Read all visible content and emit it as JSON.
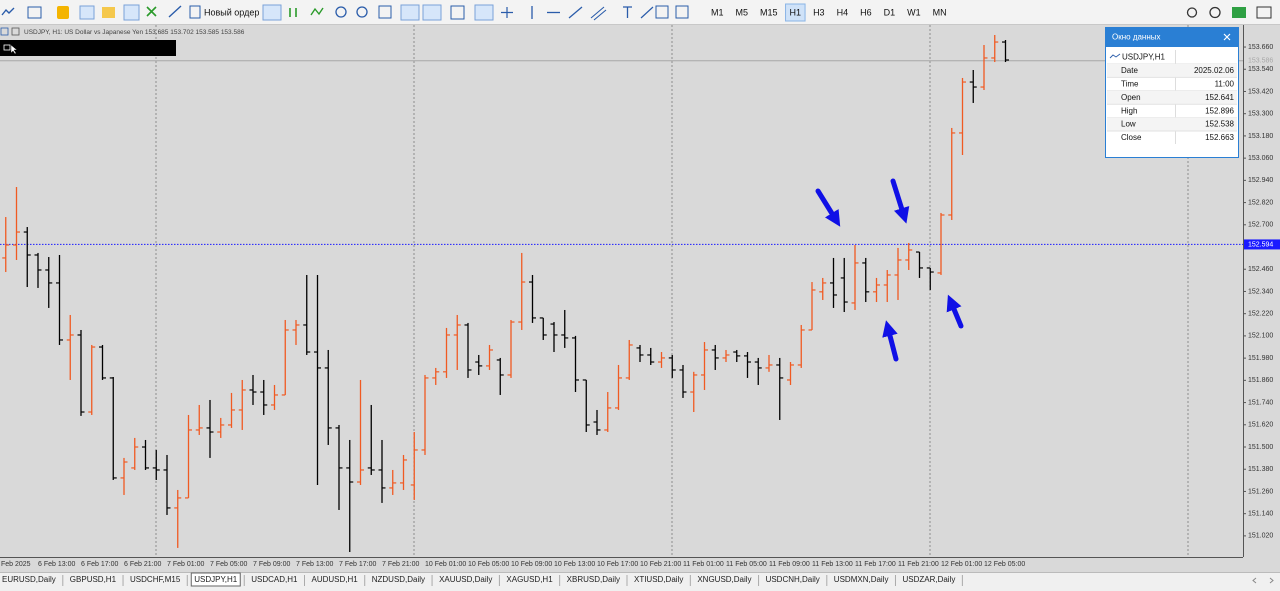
{
  "toolbar": {
    "new_order": "Новый ордер",
    "timeframes": [
      "M1",
      "M5",
      "M15",
      "H1",
      "H3",
      "H4",
      "H6",
      "D1",
      "W1",
      "MN"
    ],
    "active_timeframe": 3
  },
  "tabs": {
    "items": [
      "EURUSD,Daily",
      "GBPUSD,H1",
      "USDCHF,M15",
      "USDJPY,H1",
      "USDCAD,H1",
      "AUDUSD,H1",
      "NZDUSD,Daily",
      "XAUUSD,Daily",
      "XAGUSD,H1",
      "XBRUSD,Daily",
      "XTIUSD,Daily",
      "XNGUSD,Daily",
      "USDCNH,Daily",
      "USDMXN,Daily",
      "USDZAR,Daily"
    ],
    "active": 3
  },
  "data_window": {
    "title": "Окно данных",
    "symbol": "USDJPY,H1",
    "rows": [
      [
        "Date",
        "2025.02.06"
      ],
      [
        "Time",
        "11:00"
      ],
      [
        "Open",
        "152.641"
      ],
      [
        "High",
        "152.896"
      ],
      [
        "Low",
        "152.538"
      ],
      [
        "Close",
        "152.663"
      ]
    ]
  },
  "chart_data": {
    "type": "ohlc",
    "subtitle": "USDJPY, H1:  US Dollar vs Japanese Yen  153.685 153.702 153.585 153.586",
    "up_color": "#f05a22",
    "down_color": "#000000",
    "categories": [
      "Feb 2025",
      null,
      null,
      null,
      "6 Feb 13:00",
      null,
      null,
      null,
      "6 Feb 17:00",
      null,
      null,
      null,
      "6 Feb 21:00",
      null,
      null,
      null,
      "7 Feb 01:00",
      null,
      null,
      null,
      "7 Feb 05:00",
      null,
      null,
      null,
      "7 Feb 09:00",
      null,
      null,
      null,
      "7 Feb 13:00",
      null,
      null,
      null,
      "7 Feb 17:00",
      null,
      null,
      null,
      "7 Feb 21:00",
      null,
      null,
      null,
      "10 Feb 01:00",
      null,
      null,
      null,
      "10 Feb 05:00",
      null,
      null,
      null,
      "10 Feb 09:00",
      null,
      null,
      null,
      "10 Feb 13:00",
      null,
      null,
      null,
      "10 Feb 17:00",
      null,
      null,
      null,
      "10 Feb 21:00",
      null,
      null,
      null,
      "11 Feb 01:00",
      null,
      null,
      null,
      "11 Feb 05:00",
      null,
      null,
      null,
      "11 Feb 09:00",
      null,
      null,
      null,
      "11 Feb 13:00",
      null,
      null,
      null,
      "11 Feb 17:00",
      null,
      null,
      null,
      "11 Feb 21:00",
      null,
      null,
      null,
      "12 Feb 01:00",
      null,
      null,
      null,
      "12 Feb 05:00",
      null,
      null
    ],
    "open": [
      152.521,
      152.521,
      152.591,
      152.661,
      152.537,
      152.456,
      152.386,
      152.078,
      152.105,
      151.689,
      152.04,
      151.873,
      151.333,
      151.387,
      151.5,
      151.387,
      151.376,
      151.171,
      151.225,
      151.592,
      151.603,
      151.581,
      151.619,
      151.7,
      151.808,
      151.797,
      151.727,
      151.781,
      152.132,
      152.159,
      152.013,
      151.927,
      151.603,
      151.387,
      151.311,
      151.387,
      151.376,
      151.279,
      151.306,
      151.295,
      151.484,
      151.873,
      151.906,
      152.105,
      152.159,
      151.959,
      151.938,
      151.97,
      151.889,
      152.175,
      152.391,
      152.197,
      152.164,
      152.105,
      152.089,
      151.862,
      151.635,
      151.592,
      151.711,
      151.873,
      152.035,
      151.997,
      151.959,
      151.981,
      151.916,
      151.797,
      151.889,
      152.024,
      151.981,
      152.013,
      151.992,
      151.959,
      151.927,
      151.943,
      151.862,
      151.943,
      152.132,
      152.338,
      152.386,
      152.413,
      152.278,
      152.494,
      152.338,
      152.375,
      152.429,
      152.51,
      152.553,
      152.467,
      152.44,
      152.753,
      153.196,
      153.471,
      153.444,
      153.601,
      153.687
    ],
    "high": [
      152.645,
      152.742,
      152.904,
      152.688,
      152.548,
      152.526,
      152.537,
      152.213,
      152.132,
      152.051,
      152.051,
      151.878,
      151.441,
      151.549,
      151.538,
      151.484,
      151.457,
      151.268,
      151.673,
      151.727,
      151.754,
      151.657,
      151.792,
      151.862,
      151.889,
      151.862,
      151.835,
      152.186,
      152.186,
      152.429,
      152.429,
      152.024,
      151.619,
      151.538,
      151.862,
      151.727,
      151.538,
      151.376,
      151.457,
      151.581,
      151.889,
      151.927,
      152.143,
      152.213,
      152.17,
      151.997,
      152.051,
      151.981,
      152.186,
      152.548,
      152.429,
      152.197,
      152.175,
      152.24,
      152.1,
      151.862,
      151.7,
      151.797,
      151.943,
      152.078,
      152.051,
      152.035,
      152.013,
      151.997,
      151.943,
      151.906,
      152.067,
      152.051,
      152.024,
      152.024,
      152.013,
      151.981,
      151.997,
      151.981,
      151.959,
      152.159,
      152.391,
      152.413,
      152.521,
      152.521,
      152.591,
      152.521,
      152.413,
      152.456,
      152.575,
      152.602,
      152.553,
      152.467,
      152.764,
      153.223,
      153.493,
      153.536,
      153.671,
      153.725,
      153.698
    ],
    "low": [
      152.483,
      152.445,
      152.51,
      152.364,
      152.359,
      152.251,
      152.051,
      151.862,
      151.668,
      151.673,
      151.862,
      151.322,
      151.241,
      151.376,
      151.376,
      151.322,
      151.133,
      150.955,
      151.225,
      151.565,
      151.441,
      151.549,
      151.603,
      151.592,
      151.727,
      151.673,
      151.7,
      151.781,
      152.051,
      151.997,
      151.295,
      151.511,
      151.16,
      150.933,
      151.295,
      151.349,
      151.198,
      151.241,
      151.268,
      151.214,
      151.457,
      151.835,
      151.873,
      151.916,
      151.873,
      151.889,
      151.916,
      151.781,
      151.873,
      152.132,
      152.17,
      152.078,
      152.013,
      152.035,
      151.797,
      151.581,
      151.565,
      151.581,
      151.7,
      151.862,
      151.959,
      151.943,
      151.927,
      151.873,
      151.765,
      151.689,
      151.808,
      151.916,
      151.959,
      151.959,
      151.873,
      151.835,
      151.906,
      151.646,
      151.835,
      151.927,
      152.132,
      152.294,
      152.251,
      152.229,
      152.24,
      152.283,
      152.283,
      152.283,
      152.294,
      152.456,
      152.413,
      152.348,
      152.429,
      152.726,
      153.077,
      153.358,
      153.428,
      153.579,
      153.579
    ],
    "close": [
      152.591,
      152.591,
      152.661,
      152.537,
      152.456,
      152.386,
      152.078,
      152.105,
      151.689,
      152.04,
      151.873,
      151.333,
      151.419,
      151.5,
      151.387,
      151.376,
      151.171,
      151.225,
      151.592,
      151.603,
      151.581,
      151.619,
      151.7,
      151.808,
      151.797,
      151.727,
      151.781,
      152.132,
      152.159,
      152.013,
      151.927,
      151.603,
      151.387,
      151.311,
      151.376,
      151.376,
      151.279,
      151.306,
      151.43,
      151.484,
      151.873,
      151.906,
      152.105,
      152.159,
      151.916,
      151.938,
      152.024,
      151.889,
      152.175,
      152.391,
      152.197,
      152.105,
      152.105,
      152.089,
      151.862,
      151.619,
      151.592,
      151.711,
      151.873,
      152.051,
      151.997,
      151.959,
      151.981,
      151.916,
      151.797,
      151.889,
      152.024,
      151.981,
      151.997,
      151.992,
      151.959,
      151.927,
      151.943,
      151.873,
      151.943,
      152.132,
      152.348,
      152.386,
      152.321,
      152.283,
      152.494,
      152.338,
      152.375,
      152.429,
      152.51,
      152.564,
      152.467,
      152.445,
      152.753,
      153.196,
      153.471,
      153.444,
      153.601,
      153.687,
      153.59
    ],
    "ylim": [
      150.906,
      153.779
    ],
    "yticks": [
      {
        "value": 153.66,
        "label": "153.660"
      },
      {
        "value": 153.54,
        "label": "153.540"
      },
      {
        "value": 153.42,
        "label": "153.420"
      },
      {
        "value": 153.3,
        "label": "153.300"
      },
      {
        "value": 153.18,
        "label": "153.180"
      },
      {
        "value": 153.06,
        "label": "153.060"
      },
      {
        "value": 152.94,
        "label": "152.940"
      },
      {
        "value": 152.82,
        "label": "152.820"
      },
      {
        "value": 152.7,
        "label": "152.700"
      },
      {
        "value": 152.46,
        "label": "152.460"
      },
      {
        "value": 152.34,
        "label": "152.340"
      },
      {
        "value": 152.22,
        "label": "152.220"
      },
      {
        "value": 152.1,
        "label": "152.100"
      },
      {
        "value": 151.98,
        "label": "151.980"
      },
      {
        "value": 151.86,
        "label": "151.860"
      },
      {
        "value": 151.74,
        "label": "151.740"
      },
      {
        "value": 151.62,
        "label": "151.620"
      },
      {
        "value": 151.5,
        "label": "151.500"
      },
      {
        "value": 151.38,
        "label": "151.380"
      },
      {
        "value": 151.26,
        "label": "151.260"
      },
      {
        "value": 151.14,
        "label": "151.140"
      },
      {
        "value": 151.02,
        "label": "151.020"
      }
    ],
    "current_price": 152.594,
    "current_color": "#1a1aff",
    "bid_price": 153.586,
    "bid_color": "#a8a8a8"
  }
}
